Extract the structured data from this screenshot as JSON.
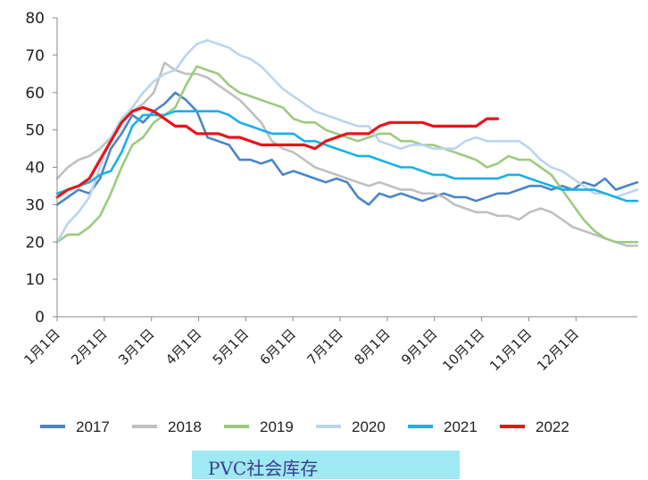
{
  "chart_data": {
    "type": "line",
    "title": "PVC社会库存",
    "xlabel": "",
    "ylabel": "",
    "ylim": [
      0,
      80
    ],
    "yticks": [
      0,
      10,
      20,
      30,
      40,
      50,
      60,
      70,
      80
    ],
    "xticks": [
      "1月1日",
      "2月1日",
      "3月1日",
      "4月1日",
      "5月1日",
      "6月1日",
      "7月1日",
      "8月1日",
      "9月1日",
      "10月1日",
      "11月1日",
      "12月1日"
    ],
    "x_unit": "week of year",
    "grid": false,
    "legend": "bottom",
    "series": [
      {
        "name": "2017",
        "color": "#4a86c5",
        "points": [
          [
            0,
            30
          ],
          [
            1,
            32
          ],
          [
            2,
            34
          ],
          [
            3,
            33
          ],
          [
            4,
            37
          ],
          [
            5,
            45
          ],
          [
            6,
            49
          ],
          [
            7,
            54
          ],
          [
            8,
            52
          ],
          [
            9,
            55
          ],
          [
            10,
            57
          ],
          [
            11,
            60
          ],
          [
            12,
            58
          ],
          [
            13,
            55
          ],
          [
            14,
            48
          ],
          [
            15,
            47
          ],
          [
            16,
            46
          ],
          [
            17,
            42
          ],
          [
            18,
            42
          ],
          [
            19,
            41
          ],
          [
            20,
            42
          ],
          [
            21,
            38
          ],
          [
            22,
            39
          ],
          [
            23,
            38
          ],
          [
            24,
            37
          ],
          [
            25,
            36
          ],
          [
            26,
            37
          ],
          [
            27,
            36
          ],
          [
            28,
            32
          ],
          [
            29,
            30
          ],
          [
            30,
            33
          ],
          [
            31,
            32
          ],
          [
            32,
            33
          ],
          [
            33,
            32
          ],
          [
            34,
            31
          ],
          [
            35,
            32
          ],
          [
            36,
            33
          ],
          [
            37,
            32
          ],
          [
            38,
            32
          ],
          [
            39,
            31
          ],
          [
            40,
            32
          ],
          [
            41,
            33
          ],
          [
            42,
            33
          ],
          [
            43,
            34
          ],
          [
            44,
            35
          ],
          [
            45,
            35
          ],
          [
            46,
            34
          ],
          [
            47,
            35
          ],
          [
            48,
            34
          ],
          [
            49,
            36
          ],
          [
            50,
            35
          ],
          [
            51,
            37
          ],
          [
            52,
            34
          ],
          [
            53,
            35
          ],
          [
            54,
            36
          ]
        ]
      },
      {
        "name": "2018",
        "color": "#c0c0c0",
        "points": [
          [
            0,
            37
          ],
          [
            1,
            40
          ],
          [
            2,
            42
          ],
          [
            3,
            43
          ],
          [
            4,
            45
          ],
          [
            5,
            48
          ],
          [
            6,
            53
          ],
          [
            7,
            55
          ],
          [
            8,
            57
          ],
          [
            9,
            60
          ],
          [
            10,
            68
          ],
          [
            11,
            66
          ],
          [
            12,
            65
          ],
          [
            13,
            65
          ],
          [
            14,
            64
          ],
          [
            15,
            62
          ],
          [
            16,
            60
          ],
          [
            17,
            58
          ],
          [
            18,
            55
          ],
          [
            19,
            52
          ],
          [
            20,
            47
          ],
          [
            21,
            45
          ],
          [
            22,
            44
          ],
          [
            23,
            42
          ],
          [
            24,
            40
          ],
          [
            25,
            39
          ],
          [
            26,
            38
          ],
          [
            27,
            37
          ],
          [
            28,
            36
          ],
          [
            29,
            35
          ],
          [
            30,
            36
          ],
          [
            31,
            35
          ],
          [
            32,
            34
          ],
          [
            33,
            34
          ],
          [
            34,
            33
          ],
          [
            35,
            33
          ],
          [
            36,
            32
          ],
          [
            37,
            30
          ],
          [
            38,
            29
          ],
          [
            39,
            28
          ],
          [
            40,
            28
          ],
          [
            41,
            27
          ],
          [
            42,
            27
          ],
          [
            43,
            26
          ],
          [
            44,
            28
          ],
          [
            45,
            29
          ],
          [
            46,
            28
          ],
          [
            47,
            26
          ],
          [
            48,
            24
          ],
          [
            49,
            23
          ],
          [
            50,
            22
          ],
          [
            51,
            21
          ],
          [
            52,
            20
          ],
          [
            53,
            19
          ],
          [
            54,
            19
          ]
        ]
      },
      {
        "name": "2019",
        "color": "#9ccb7e",
        "points": [
          [
            0,
            20
          ],
          [
            1,
            22
          ],
          [
            2,
            22
          ],
          [
            3,
            24
          ],
          [
            4,
            27
          ],
          [
            5,
            33
          ],
          [
            6,
            40
          ],
          [
            7,
            46
          ],
          [
            8,
            48
          ],
          [
            9,
            52
          ],
          [
            10,
            54
          ],
          [
            11,
            56
          ],
          [
            12,
            62
          ],
          [
            13,
            67
          ],
          [
            14,
            66
          ],
          [
            15,
            65
          ],
          [
            16,
            62
          ],
          [
            17,
            60
          ],
          [
            18,
            59
          ],
          [
            19,
            58
          ],
          [
            20,
            57
          ],
          [
            21,
            56
          ],
          [
            22,
            53
          ],
          [
            23,
            52
          ],
          [
            24,
            52
          ],
          [
            25,
            50
          ],
          [
            26,
            49
          ],
          [
            27,
            48
          ],
          [
            28,
            47
          ],
          [
            29,
            48
          ],
          [
            30,
            49
          ],
          [
            31,
            49
          ],
          [
            32,
            47
          ],
          [
            33,
            47
          ],
          [
            34,
            46
          ],
          [
            35,
            46
          ],
          [
            36,
            45
          ],
          [
            37,
            44
          ],
          [
            38,
            43
          ],
          [
            39,
            42
          ],
          [
            40,
            40
          ],
          [
            41,
            41
          ],
          [
            42,
            43
          ],
          [
            43,
            42
          ],
          [
            44,
            42
          ],
          [
            45,
            40
          ],
          [
            46,
            38
          ],
          [
            47,
            34
          ],
          [
            48,
            30
          ],
          [
            49,
            26
          ],
          [
            50,
            23
          ],
          [
            51,
            21
          ],
          [
            52,
            20
          ],
          [
            53,
            20
          ],
          [
            54,
            20
          ]
        ]
      },
      {
        "name": "2020",
        "color": "#bcd5ee",
        "points": [
          [
            0,
            20
          ],
          [
            1,
            25
          ],
          [
            2,
            28
          ],
          [
            3,
            32
          ],
          [
            4,
            40
          ],
          [
            5,
            48
          ],
          [
            6,
            53
          ],
          [
            7,
            56
          ],
          [
            8,
            60
          ],
          [
            9,
            63
          ],
          [
            10,
            65
          ],
          [
            11,
            66
          ],
          [
            12,
            70
          ],
          [
            13,
            73
          ],
          [
            14,
            74
          ],
          [
            15,
            73
          ],
          [
            16,
            72
          ],
          [
            17,
            70
          ],
          [
            18,
            69
          ],
          [
            19,
            67
          ],
          [
            20,
            64
          ],
          [
            21,
            61
          ],
          [
            22,
            59
          ],
          [
            23,
            57
          ],
          [
            24,
            55
          ],
          [
            25,
            54
          ],
          [
            26,
            53
          ],
          [
            27,
            52
          ],
          [
            28,
            51
          ],
          [
            29,
            51
          ],
          [
            30,
            47
          ],
          [
            31,
            46
          ],
          [
            32,
            45
          ],
          [
            33,
            46
          ],
          [
            34,
            46
          ],
          [
            35,
            45
          ],
          [
            36,
            45
          ],
          [
            37,
            45
          ],
          [
            38,
            47
          ],
          [
            39,
            48
          ],
          [
            40,
            47
          ],
          [
            41,
            47
          ],
          [
            42,
            47
          ],
          [
            43,
            47
          ],
          [
            44,
            45
          ],
          [
            45,
            42
          ],
          [
            46,
            40
          ],
          [
            47,
            39
          ],
          [
            48,
            37
          ],
          [
            49,
            35
          ],
          [
            50,
            33
          ],
          [
            51,
            33
          ],
          [
            52,
            32
          ],
          [
            53,
            33
          ],
          [
            54,
            34
          ]
        ]
      },
      {
        "name": "2021",
        "color": "#1ab0e8",
        "points": [
          [
            0,
            33
          ],
          [
            1,
            34
          ],
          [
            2,
            35
          ],
          [
            3,
            36
          ],
          [
            4,
            38
          ],
          [
            5,
            39
          ],
          [
            6,
            44
          ],
          [
            7,
            51
          ],
          [
            8,
            54
          ],
          [
            9,
            54
          ],
          [
            10,
            54
          ],
          [
            11,
            55
          ],
          [
            12,
            55
          ],
          [
            13,
            55
          ],
          [
            14,
            55
          ],
          [
            15,
            55
          ],
          [
            16,
            54
          ],
          [
            17,
            52
          ],
          [
            18,
            51
          ],
          [
            19,
            50
          ],
          [
            20,
            49
          ],
          [
            21,
            49
          ],
          [
            22,
            49
          ],
          [
            23,
            47
          ],
          [
            24,
            47
          ],
          [
            25,
            46
          ],
          [
            26,
            45
          ],
          [
            27,
            44
          ],
          [
            28,
            43
          ],
          [
            29,
            43
          ],
          [
            30,
            42
          ],
          [
            31,
            41
          ],
          [
            32,
            40
          ],
          [
            33,
            40
          ],
          [
            34,
            39
          ],
          [
            35,
            38
          ],
          [
            36,
            38
          ],
          [
            37,
            37
          ],
          [
            38,
            37
          ],
          [
            39,
            37
          ],
          [
            40,
            37
          ],
          [
            41,
            37
          ],
          [
            42,
            38
          ],
          [
            43,
            38
          ],
          [
            44,
            37
          ],
          [
            45,
            36
          ],
          [
            46,
            35
          ],
          [
            47,
            34
          ],
          [
            48,
            34
          ],
          [
            49,
            34
          ],
          [
            50,
            34
          ],
          [
            51,
            33
          ],
          [
            52,
            32
          ],
          [
            53,
            31
          ],
          [
            54,
            31
          ]
        ]
      },
      {
        "name": "2022",
        "color": "#e8141a",
        "points": [
          [
            0,
            32
          ],
          [
            1,
            34
          ],
          [
            2,
            35
          ],
          [
            3,
            37
          ],
          [
            4,
            42
          ],
          [
            5,
            47
          ],
          [
            6,
            52
          ],
          [
            7,
            55
          ],
          [
            8,
            56
          ],
          [
            9,
            55
          ],
          [
            10,
            53
          ],
          [
            11,
            51
          ],
          [
            12,
            51
          ],
          [
            13,
            49
          ],
          [
            14,
            49
          ],
          [
            15,
            49
          ],
          [
            16,
            48
          ],
          [
            17,
            48
          ],
          [
            18,
            47
          ],
          [
            19,
            46
          ],
          [
            20,
            46
          ],
          [
            21,
            46
          ],
          [
            22,
            46
          ],
          [
            23,
            46
          ],
          [
            24,
            45
          ],
          [
            25,
            47
          ],
          [
            26,
            48
          ],
          [
            27,
            49
          ],
          [
            28,
            49
          ],
          [
            29,
            49
          ],
          [
            30,
            51
          ],
          [
            31,
            52
          ],
          [
            32,
            52
          ],
          [
            33,
            52
          ],
          [
            34,
            52
          ],
          [
            35,
            51
          ],
          [
            36,
            51
          ],
          [
            37,
            51
          ],
          [
            38,
            51
          ],
          [
            39,
            51
          ],
          [
            40,
            53
          ],
          [
            41,
            53
          ]
        ]
      }
    ]
  }
}
